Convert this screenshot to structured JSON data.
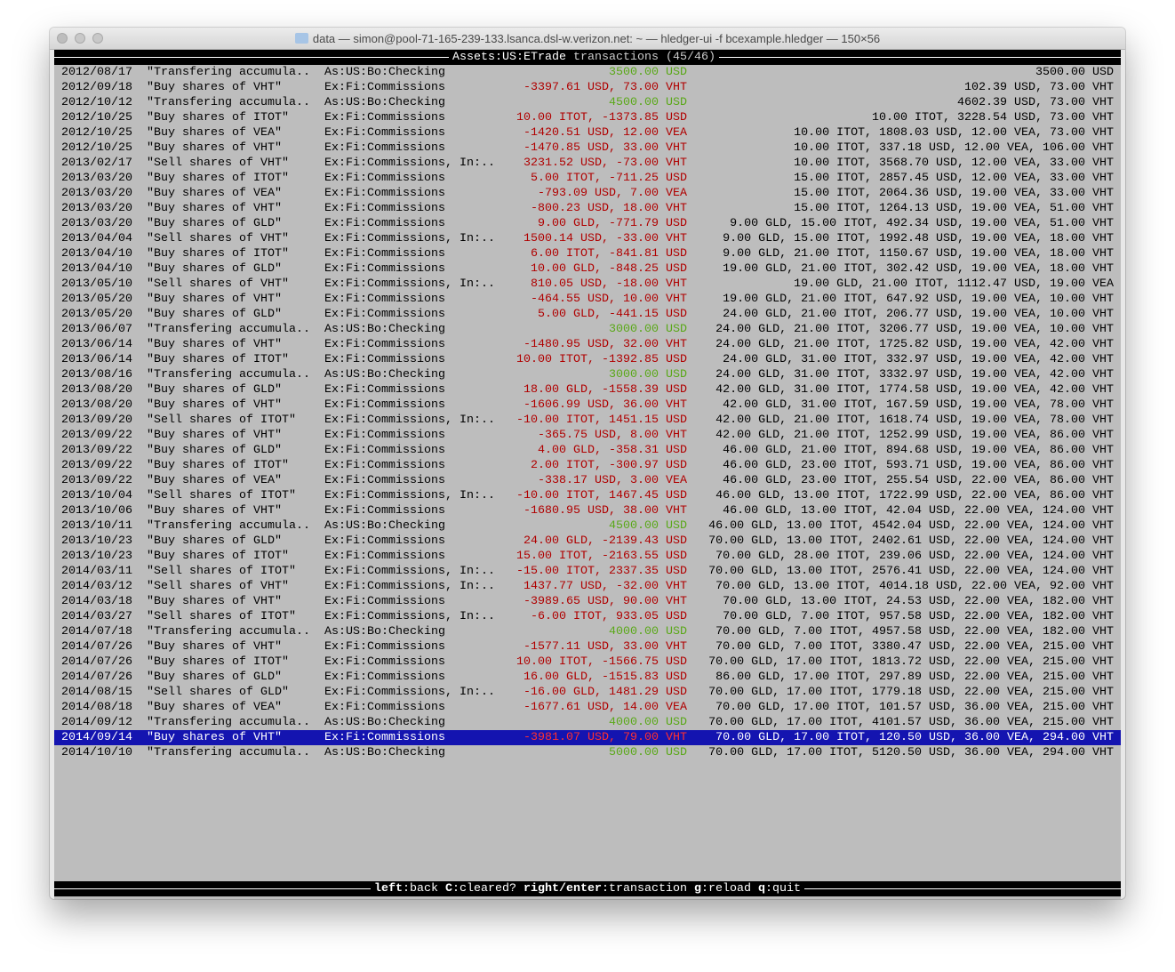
{
  "window": {
    "title": "data — simon@pool-71-165-239-133.lsanca.dsl-w.verizon.net: ~ — hledger-ui -f bcexample.hledger — 150×56"
  },
  "header": {
    "account": "Assets:US:ETrade",
    "suffix": " transactions (45/46)"
  },
  "colors": {
    "positive": "#5aa818",
    "negative": "#b00000",
    "selected_bg": "#1414b0",
    "background": "#bdbdbd"
  },
  "selected_index": 44,
  "rows": [
    {
      "date": "2012/08/17",
      "desc": "\"Transfering accumula..",
      "account": "As:US:Bo:Checking",
      "amount": "3500.00 USD",
      "color": "green",
      "balance": "3500.00 USD"
    },
    {
      "date": "2012/09/18",
      "desc": "\"Buy shares of VHT\"",
      "account": "Ex:Fi:Commissions",
      "amount": "-3397.61 USD, 73.00 VHT",
      "color": "red",
      "balance": "102.39 USD, 73.00 VHT"
    },
    {
      "date": "2012/10/12",
      "desc": "\"Transfering accumula..",
      "account": "As:US:Bo:Checking",
      "amount": "4500.00 USD",
      "color": "green",
      "balance": "4602.39 USD, 73.00 VHT"
    },
    {
      "date": "2012/10/25",
      "desc": "\"Buy shares of ITOT\"",
      "account": "Ex:Fi:Commissions",
      "amount": "10.00 ITOT, -1373.85 USD",
      "color": "red",
      "balance": "10.00 ITOT, 3228.54 USD, 73.00 VHT"
    },
    {
      "date": "2012/10/25",
      "desc": "\"Buy shares of VEA\"",
      "account": "Ex:Fi:Commissions",
      "amount": "-1420.51 USD, 12.00 VEA",
      "color": "red",
      "balance": "10.00 ITOT, 1808.03 USD, 12.00 VEA, 73.00 VHT"
    },
    {
      "date": "2012/10/25",
      "desc": "\"Buy shares of VHT\"",
      "account": "Ex:Fi:Commissions",
      "amount": "-1470.85 USD, 33.00 VHT",
      "color": "red",
      "balance": "10.00 ITOT, 337.18 USD, 12.00 VEA, 106.00 VHT"
    },
    {
      "date": "2013/02/17",
      "desc": "\"Sell shares of VHT\"",
      "account": "Ex:Fi:Commissions, In:..",
      "amount": "3231.52 USD, -73.00 VHT",
      "color": "red",
      "balance": "10.00 ITOT, 3568.70 USD, 12.00 VEA, 33.00 VHT"
    },
    {
      "date": "2013/03/20",
      "desc": "\"Buy shares of ITOT\"",
      "account": "Ex:Fi:Commissions",
      "amount": "5.00 ITOT, -711.25 USD",
      "color": "red",
      "balance": "15.00 ITOT, 2857.45 USD, 12.00 VEA, 33.00 VHT"
    },
    {
      "date": "2013/03/20",
      "desc": "\"Buy shares of VEA\"",
      "account": "Ex:Fi:Commissions",
      "amount": "-793.09 USD, 7.00 VEA",
      "color": "red",
      "balance": "15.00 ITOT, 2064.36 USD, 19.00 VEA, 33.00 VHT"
    },
    {
      "date": "2013/03/20",
      "desc": "\"Buy shares of VHT\"",
      "account": "Ex:Fi:Commissions",
      "amount": "-800.23 USD, 18.00 VHT",
      "color": "red",
      "balance": "15.00 ITOT, 1264.13 USD, 19.00 VEA, 51.00 VHT"
    },
    {
      "date": "2013/03/20",
      "desc": "\"Buy shares of GLD\"",
      "account": "Ex:Fi:Commissions",
      "amount": "9.00 GLD, -771.79 USD",
      "color": "red",
      "balance": "9.00 GLD, 15.00 ITOT, 492.34 USD, 19.00 VEA, 51.00 VHT"
    },
    {
      "date": "2013/04/04",
      "desc": "\"Sell shares of VHT\"",
      "account": "Ex:Fi:Commissions, In:..",
      "amount": "1500.14 USD, -33.00 VHT",
      "color": "red",
      "balance": "9.00 GLD, 15.00 ITOT, 1992.48 USD, 19.00 VEA, 18.00 VHT"
    },
    {
      "date": "2013/04/10",
      "desc": "\"Buy shares of ITOT\"",
      "account": "Ex:Fi:Commissions",
      "amount": "6.00 ITOT, -841.81 USD",
      "color": "red",
      "balance": "9.00 GLD, 21.00 ITOT, 1150.67 USD, 19.00 VEA, 18.00 VHT"
    },
    {
      "date": "2013/04/10",
      "desc": "\"Buy shares of GLD\"",
      "account": "Ex:Fi:Commissions",
      "amount": "10.00 GLD, -848.25 USD",
      "color": "red",
      "balance": "19.00 GLD, 21.00 ITOT, 302.42 USD, 19.00 VEA, 18.00 VHT"
    },
    {
      "date": "2013/05/10",
      "desc": "\"Sell shares of VHT\"",
      "account": "Ex:Fi:Commissions, In:..",
      "amount": "810.05 USD, -18.00 VHT",
      "color": "red",
      "balance": "19.00 GLD, 21.00 ITOT, 1112.47 USD, 19.00 VEA"
    },
    {
      "date": "2013/05/20",
      "desc": "\"Buy shares of VHT\"",
      "account": "Ex:Fi:Commissions",
      "amount": "-464.55 USD, 10.00 VHT",
      "color": "red",
      "balance": "19.00 GLD, 21.00 ITOT, 647.92 USD, 19.00 VEA, 10.00 VHT"
    },
    {
      "date": "2013/05/20",
      "desc": "\"Buy shares of GLD\"",
      "account": "Ex:Fi:Commissions",
      "amount": "5.00 GLD, -441.15 USD",
      "color": "red",
      "balance": "24.00 GLD, 21.00 ITOT, 206.77 USD, 19.00 VEA, 10.00 VHT"
    },
    {
      "date": "2013/06/07",
      "desc": "\"Transfering accumula..",
      "account": "As:US:Bo:Checking",
      "amount": "3000.00 USD",
      "color": "green",
      "balance": "24.00 GLD, 21.00 ITOT, 3206.77 USD, 19.00 VEA, 10.00 VHT"
    },
    {
      "date": "2013/06/14",
      "desc": "\"Buy shares of VHT\"",
      "account": "Ex:Fi:Commissions",
      "amount": "-1480.95 USD, 32.00 VHT",
      "color": "red",
      "balance": "24.00 GLD, 21.00 ITOT, 1725.82 USD, 19.00 VEA, 42.00 VHT"
    },
    {
      "date": "2013/06/14",
      "desc": "\"Buy shares of ITOT\"",
      "account": "Ex:Fi:Commissions",
      "amount": "10.00 ITOT, -1392.85 USD",
      "color": "red",
      "balance": "24.00 GLD, 31.00 ITOT, 332.97 USD, 19.00 VEA, 42.00 VHT"
    },
    {
      "date": "2013/08/16",
      "desc": "\"Transfering accumula..",
      "account": "As:US:Bo:Checking",
      "amount": "3000.00 USD",
      "color": "green",
      "balance": "24.00 GLD, 31.00 ITOT, 3332.97 USD, 19.00 VEA, 42.00 VHT"
    },
    {
      "date": "2013/08/20",
      "desc": "\"Buy shares of GLD\"",
      "account": "Ex:Fi:Commissions",
      "amount": "18.00 GLD, -1558.39 USD",
      "color": "red",
      "balance": "42.00 GLD, 31.00 ITOT, 1774.58 USD, 19.00 VEA, 42.00 VHT"
    },
    {
      "date": "2013/08/20",
      "desc": "\"Buy shares of VHT\"",
      "account": "Ex:Fi:Commissions",
      "amount": "-1606.99 USD, 36.00 VHT",
      "color": "red",
      "balance": "42.00 GLD, 31.00 ITOT, 167.59 USD, 19.00 VEA, 78.00 VHT"
    },
    {
      "date": "2013/09/20",
      "desc": "\"Sell shares of ITOT\"",
      "account": "Ex:Fi:Commissions, In:..",
      "amount": "-10.00 ITOT, 1451.15 USD",
      "color": "red",
      "balance": "42.00 GLD, 21.00 ITOT, 1618.74 USD, 19.00 VEA, 78.00 VHT"
    },
    {
      "date": "2013/09/22",
      "desc": "\"Buy shares of VHT\"",
      "account": "Ex:Fi:Commissions",
      "amount": "-365.75 USD, 8.00 VHT",
      "color": "red",
      "balance": "42.00 GLD, 21.00 ITOT, 1252.99 USD, 19.00 VEA, 86.00 VHT"
    },
    {
      "date": "2013/09/22",
      "desc": "\"Buy shares of GLD\"",
      "account": "Ex:Fi:Commissions",
      "amount": "4.00 GLD, -358.31 USD",
      "color": "red",
      "balance": "46.00 GLD, 21.00 ITOT, 894.68 USD, 19.00 VEA, 86.00 VHT"
    },
    {
      "date": "2013/09/22",
      "desc": "\"Buy shares of ITOT\"",
      "account": "Ex:Fi:Commissions",
      "amount": "2.00 ITOT, -300.97 USD",
      "color": "red",
      "balance": "46.00 GLD, 23.00 ITOT, 593.71 USD, 19.00 VEA, 86.00 VHT"
    },
    {
      "date": "2013/09/22",
      "desc": "\"Buy shares of VEA\"",
      "account": "Ex:Fi:Commissions",
      "amount": "-338.17 USD, 3.00 VEA",
      "color": "red",
      "balance": "46.00 GLD, 23.00 ITOT, 255.54 USD, 22.00 VEA, 86.00 VHT"
    },
    {
      "date": "2013/10/04",
      "desc": "\"Sell shares of ITOT\"",
      "account": "Ex:Fi:Commissions, In:..",
      "amount": "-10.00 ITOT, 1467.45 USD",
      "color": "red",
      "balance": "46.00 GLD, 13.00 ITOT, 1722.99 USD, 22.00 VEA, 86.00 VHT"
    },
    {
      "date": "2013/10/06",
      "desc": "\"Buy shares of VHT\"",
      "account": "Ex:Fi:Commissions",
      "amount": "-1680.95 USD, 38.00 VHT",
      "color": "red",
      "balance": "46.00 GLD, 13.00 ITOT, 42.04 USD, 22.00 VEA, 124.00 VHT"
    },
    {
      "date": "2013/10/11",
      "desc": "\"Transfering accumula..",
      "account": "As:US:Bo:Checking",
      "amount": "4500.00 USD",
      "color": "green",
      "balance": "46.00 GLD, 13.00 ITOT, 4542.04 USD, 22.00 VEA, 124.00 VHT"
    },
    {
      "date": "2013/10/23",
      "desc": "\"Buy shares of GLD\"",
      "account": "Ex:Fi:Commissions",
      "amount": "24.00 GLD, -2139.43 USD",
      "color": "red",
      "balance": "70.00 GLD, 13.00 ITOT, 2402.61 USD, 22.00 VEA, 124.00 VHT"
    },
    {
      "date": "2013/10/23",
      "desc": "\"Buy shares of ITOT\"",
      "account": "Ex:Fi:Commissions",
      "amount": "15.00 ITOT, -2163.55 USD",
      "color": "red",
      "balance": "70.00 GLD, 28.00 ITOT, 239.06 USD, 22.00 VEA, 124.00 VHT"
    },
    {
      "date": "2014/03/11",
      "desc": "\"Sell shares of ITOT\"",
      "account": "Ex:Fi:Commissions, In:..",
      "amount": "-15.00 ITOT, 2337.35 USD",
      "color": "red",
      "balance": "70.00 GLD, 13.00 ITOT, 2576.41 USD, 22.00 VEA, 124.00 VHT"
    },
    {
      "date": "2014/03/12",
      "desc": "\"Sell shares of VHT\"",
      "account": "Ex:Fi:Commissions, In:..",
      "amount": "1437.77 USD, -32.00 VHT",
      "color": "red",
      "balance": "70.00 GLD, 13.00 ITOT, 4014.18 USD, 22.00 VEA, 92.00 VHT"
    },
    {
      "date": "2014/03/18",
      "desc": "\"Buy shares of VHT\"",
      "account": "Ex:Fi:Commissions",
      "amount": "-3989.65 USD, 90.00 VHT",
      "color": "red",
      "balance": "70.00 GLD, 13.00 ITOT, 24.53 USD, 22.00 VEA, 182.00 VHT"
    },
    {
      "date": "2014/03/27",
      "desc": "\"Sell shares of ITOT\"",
      "account": "Ex:Fi:Commissions, In:..",
      "amount": "-6.00 ITOT, 933.05 USD",
      "color": "red",
      "balance": "70.00 GLD, 7.00 ITOT, 957.58 USD, 22.00 VEA, 182.00 VHT"
    },
    {
      "date": "2014/07/18",
      "desc": "\"Transfering accumula..",
      "account": "As:US:Bo:Checking",
      "amount": "4000.00 USD",
      "color": "green",
      "balance": "70.00 GLD, 7.00 ITOT, 4957.58 USD, 22.00 VEA, 182.00 VHT"
    },
    {
      "date": "2014/07/26",
      "desc": "\"Buy shares of VHT\"",
      "account": "Ex:Fi:Commissions",
      "amount": "-1577.11 USD, 33.00 VHT",
      "color": "red",
      "balance": "70.00 GLD, 7.00 ITOT, 3380.47 USD, 22.00 VEA, 215.00 VHT"
    },
    {
      "date": "2014/07/26",
      "desc": "\"Buy shares of ITOT\"",
      "account": "Ex:Fi:Commissions",
      "amount": "10.00 ITOT, -1566.75 USD",
      "color": "red",
      "balance": "70.00 GLD, 17.00 ITOT, 1813.72 USD, 22.00 VEA, 215.00 VHT"
    },
    {
      "date": "2014/07/26",
      "desc": "\"Buy shares of GLD\"",
      "account": "Ex:Fi:Commissions",
      "amount": "16.00 GLD, -1515.83 USD",
      "color": "red",
      "balance": "86.00 GLD, 17.00 ITOT, 297.89 USD, 22.00 VEA, 215.00 VHT"
    },
    {
      "date": "2014/08/15",
      "desc": "\"Sell shares of GLD\"",
      "account": "Ex:Fi:Commissions, In:..",
      "amount": "-16.00 GLD, 1481.29 USD",
      "color": "red",
      "balance": "70.00 GLD, 17.00 ITOT, 1779.18 USD, 22.00 VEA, 215.00 VHT"
    },
    {
      "date": "2014/08/18",
      "desc": "\"Buy shares of VEA\"",
      "account": "Ex:Fi:Commissions",
      "amount": "-1677.61 USD, 14.00 VEA",
      "color": "red",
      "balance": "70.00 GLD, 17.00 ITOT, 101.57 USD, 36.00 VEA, 215.00 VHT"
    },
    {
      "date": "2014/09/12",
      "desc": "\"Transfering accumula..",
      "account": "As:US:Bo:Checking",
      "amount": "4000.00 USD",
      "color": "green",
      "balance": "70.00 GLD, 17.00 ITOT, 4101.57 USD, 36.00 VEA, 215.00 VHT"
    },
    {
      "date": "2014/09/14",
      "desc": "\"Buy shares of VHT\"",
      "account": "Ex:Fi:Commissions",
      "amount": "-3981.07 USD, 79.00 VHT",
      "color": "red",
      "balance": "70.00 GLD, 17.00 ITOT, 120.50 USD, 36.00 VEA, 294.00 VHT"
    },
    {
      "date": "2014/10/10",
      "desc": "\"Transfering accumula..",
      "account": "As:US:Bo:Checking",
      "amount": "5000.00 USD",
      "color": "green",
      "balance": "70.00 GLD, 17.00 ITOT, 5120.50 USD, 36.00 VEA, 294.00 VHT"
    }
  ],
  "footer": {
    "keys": [
      {
        "key": "left",
        "action": "back"
      },
      {
        "key": "C",
        "action": "cleared?"
      },
      {
        "key": "right/enter",
        "action": "transaction"
      },
      {
        "key": "g",
        "action": "reload"
      },
      {
        "key": "q",
        "action": "quit"
      }
    ]
  }
}
